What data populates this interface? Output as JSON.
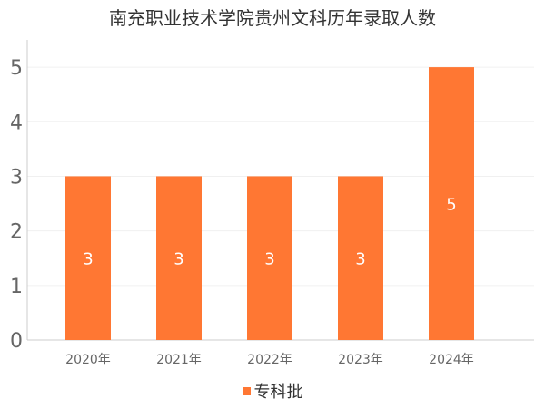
{
  "chart_data": {
    "type": "bar",
    "title": "南充职业技术学院贵州文科历年录取人数",
    "categories": [
      "2020年",
      "2021年",
      "2022年",
      "2023年",
      "2024年"
    ],
    "series": [
      {
        "name": "专科批",
        "values": [
          3,
          3,
          3,
          3,
          5
        ],
        "color": "#ff7733"
      }
    ],
    "y_ticks": [
      "0",
      "1",
      "2",
      "3",
      "4",
      "5"
    ],
    "ylim": [
      0,
      5.5
    ],
    "grid": true,
    "legend_position": "bottom-center",
    "data_labels": true
  }
}
